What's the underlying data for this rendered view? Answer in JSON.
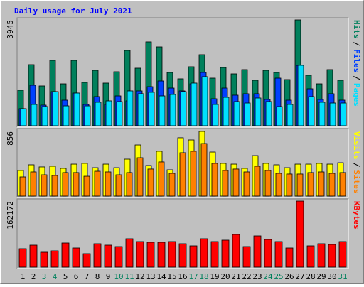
{
  "chart_data": {
    "type": "bar",
    "title": "Daily usage for July 2021",
    "categories": [
      1,
      2,
      3,
      4,
      5,
      6,
      7,
      8,
      9,
      10,
      11,
      12,
      13,
      14,
      15,
      16,
      17,
      18,
      19,
      20,
      21,
      22,
      23,
      24,
      25,
      26,
      27,
      28,
      29,
      30,
      31
    ],
    "category_colors": [
      "#000000",
      "#000000",
      "#00805c",
      "#00805c",
      "#000000",
      "#000000",
      "#000000",
      "#000000",
      "#000000",
      "#00805c",
      "#00805c",
      "#000000",
      "#000000",
      "#000000",
      "#000000",
      "#000000",
      "#00805c",
      "#00805c",
      "#000000",
      "#000000",
      "#000000",
      "#000000",
      "#000000",
      "#00805c",
      "#00805c",
      "#000000",
      "#000000",
      "#000000",
      "#000000",
      "#000000",
      "#00805c"
    ],
    "legend_separator": "/",
    "panels": [
      {
        "ylim": [
          0,
          3945
        ],
        "yticks": [
          3945
        ],
        "series": [
          {
            "name": "Hits",
            "color": "#00805c",
            "values": [
              1324,
              2277,
              1483,
              2436,
              1562,
              2436,
              1615,
              2065,
              1589,
              2012,
              2807,
              2145,
              3125,
              2939,
              1986,
              1748,
              2198,
              2648,
              1774,
              2171,
              1933,
              2092,
              1695,
              2065,
              1986,
              1721,
              3945,
              1880,
              1562,
              2092,
              1695
            ]
          },
          {
            "name": "Files",
            "color": "#0040ff",
            "values": [
              636,
              1509,
              768,
              1271,
              953,
              1218,
              794,
              1086,
              794,
              1112,
              927,
              1298,
              1456,
              1668,
              1403,
              1298,
              1562,
              1986,
              1006,
              1403,
              1139,
              1192,
              1192,
              980,
              1774,
              953,
              2251,
              1377,
              980,
              1192,
              953
            ]
          },
          {
            "name": "Pages",
            "color": "#00e0ff",
            "values": [
              636,
              794,
              715,
              1271,
              741,
              1218,
              741,
              874,
              927,
              900,
              1298,
              1192,
              1245,
              1112,
              1165,
              1271,
              1589,
              1827,
              794,
              1059,
              900,
              847,
              1033,
              900,
              715,
              794,
              2251,
              1086,
              874,
              847,
              847
            ]
          }
        ]
      },
      {
        "ylim": [
          0,
          856
        ],
        "yticks": [
          856
        ],
        "series": [
          {
            "name": "Visits",
            "color": "#ffff00",
            "values": [
              339,
              414,
              386,
              395,
              367,
              423,
              433,
              376,
              423,
              376,
              489,
              677,
              405,
              593,
              348,
              772,
              743,
              856,
              583,
              433,
              423,
              367,
              536,
              433,
              414,
              376,
              423,
              423,
              433,
              423,
              442
            ]
          },
          {
            "name": "Sites",
            "color": "#ff8000",
            "values": [
              254,
              320,
              282,
              273,
              311,
              311,
              263,
              329,
              320,
              282,
              311,
              508,
              358,
              452,
              301,
              574,
              593,
              696,
              433,
              339,
              358,
              320,
              395,
              339,
              301,
              292,
              292,
              311,
              320,
              301,
              311
            ]
          }
        ]
      },
      {
        "ylim": [
          0,
          162172
        ],
        "yticks": [
          162172
        ],
        "series": [
          {
            "name": "KBytes",
            "color": "#ff0000",
            "values": [
              45344,
              54064,
              36624,
              40112,
              59296,
              47088,
              33136,
              57552,
              54064,
              50576,
              69760,
              62784,
              61040,
              61040,
              62784,
              57552,
              52320,
              69760,
              62784,
              66272,
              80224,
              50576,
              76736,
              68016,
              62784,
              47088,
              162172,
              52320,
              57552,
              55808,
              62784
            ]
          }
        ]
      }
    ]
  }
}
